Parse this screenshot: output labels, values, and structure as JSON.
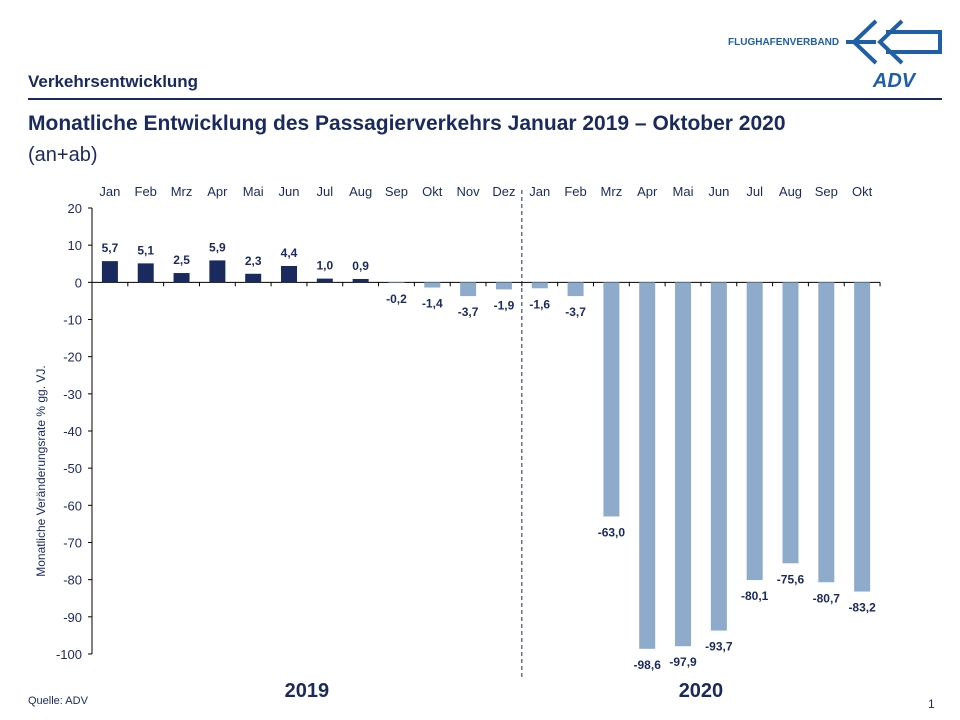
{
  "header": {
    "section": "Verkehrsentwicklung",
    "logo_text": "FLUGHAFENVERBAND",
    "logo_mark": "ADV"
  },
  "footer": {
    "source": "Quelle: ADV",
    "page": "1"
  },
  "colors": {
    "pos_2019": "#1a2a5e",
    "neg": "#8eabcc",
    "text": "#1a2a5e",
    "logo": "#1f5fa8"
  },
  "chart_data": {
    "type": "bar",
    "title": "Monatliche Entwicklung des Passagierverkehrs  Januar 2019 – Oktober 2020",
    "subtitle": "(an+ab)",
    "ylabel": "Monatliche Veränderungsrate % gg. VJ.",
    "ylim": [
      -100,
      20
    ],
    "yticks": [
      20,
      10,
      0,
      -10,
      -20,
      -30,
      -40,
      -50,
      -60,
      -70,
      -80,
      -90,
      -100
    ],
    "categories": [
      "Jan",
      "Feb",
      "Mrz",
      "Apr",
      "Mai",
      "Jun",
      "Jul",
      "Aug",
      "Sep",
      "Okt",
      "Nov",
      "Dez",
      "Jan",
      "Feb",
      "Mrz",
      "Apr",
      "Mai",
      "Jun",
      "Jul",
      "Aug",
      "Sep",
      "Okt"
    ],
    "groups": [
      {
        "label": "2019",
        "count": 12
      },
      {
        "label": "2020",
        "count": 10
      }
    ],
    "values": [
      5.7,
      5.1,
      2.5,
      5.9,
      2.3,
      4.4,
      1.0,
      0.9,
      -0.2,
      -1.4,
      -3.7,
      -1.9,
      -1.6,
      -3.7,
      -63.0,
      -98.6,
      -97.9,
      -93.7,
      -80.1,
      -75.6,
      -80.7,
      -83.2
    ],
    "labels": [
      "5,7",
      "5,1",
      "2,5",
      "5,9",
      "2,3",
      "4,4",
      "1,0",
      "0,9",
      "-0,2",
      "-1,4",
      "-3,7",
      "-1,9",
      "-1,6",
      "-3,7",
      "-63,0",
      "-98,6",
      "-97,9",
      "-93,7",
      "-80,1",
      "-75,6",
      "-80,7",
      "-83,2"
    ],
    "grid": false,
    "legend": "none"
  }
}
